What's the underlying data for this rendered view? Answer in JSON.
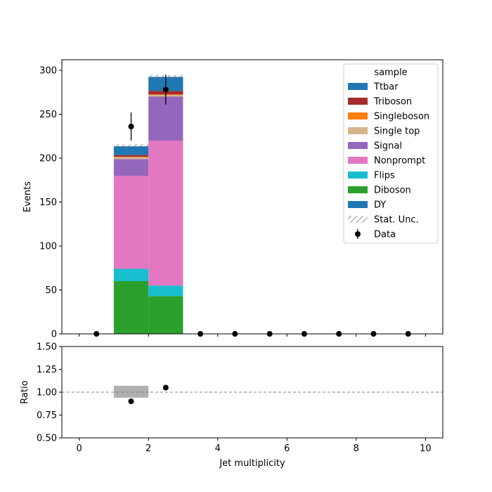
{
  "chart_data": [
    {
      "type": "bar",
      "stacked": true,
      "xlabel": "",
      "ylabel": "Events",
      "xlim": [
        -0.5,
        10.5
      ],
      "ylim": [
        0,
        312
      ],
      "y_ticks": [
        0,
        50,
        100,
        150,
        200,
        250,
        300
      ],
      "bins": [
        [
          1,
          2
        ],
        [
          2,
          3
        ]
      ],
      "series": [
        {
          "name": "DY",
          "color": "#1f77b4",
          "values": [
            0,
            0
          ]
        },
        {
          "name": "Diboson",
          "color": "#2ca02c",
          "values": [
            60,
            43
          ]
        },
        {
          "name": "Flips",
          "color": "#17becf",
          "values": [
            14,
            12
          ]
        },
        {
          "name": "Nonprompt",
          "color": "#e377c2",
          "values": [
            106,
            165
          ]
        },
        {
          "name": "Signal",
          "color": "#9467bd",
          "values": [
            19,
            50
          ]
        },
        {
          "name": "Single top",
          "color": "#d6b58b",
          "values": [
            2,
            2
          ]
        },
        {
          "name": "Singleboson",
          "color": "#ff7f0e",
          "values": [
            0.5,
            0.5
          ]
        },
        {
          "name": "Triboson",
          "color": "#a52a2a",
          "values": [
            2,
            4
          ]
        },
        {
          "name": "Ttbar",
          "color": "#1f77b4",
          "values": [
            10,
            16
          ]
        }
      ],
      "stat_unc": {
        "label": "Stat. Unc.",
        "lower": [
          212,
          289
        ],
        "upper": [
          216,
          295
        ]
      },
      "data": {
        "label": "Data",
        "x": [
          0.5,
          1.5,
          2.5,
          3.5,
          4.5,
          5.5,
          6.5,
          7.5,
          8.5,
          9.5
        ],
        "y": [
          0,
          236,
          278,
          0,
          0,
          0,
          0,
          0,
          0,
          0
        ],
        "yerr": [
          0,
          16,
          17,
          0,
          0,
          0,
          0,
          0,
          0,
          0
        ]
      },
      "legend": {
        "title": "sample",
        "placement": "top-right"
      }
    },
    {
      "type": "scatter",
      "xlabel": "Jet multiplicity",
      "ylabel": "Ratio",
      "xlim": [
        -0.5,
        10.5
      ],
      "ylim": [
        0.5,
        1.5
      ],
      "x_ticks": [
        0,
        2,
        4,
        6,
        8,
        10
      ],
      "y_ticks": [
        0.5,
        0.75,
        1.0,
        1.25,
        1.5
      ],
      "y_tick_labels": [
        "0.50",
        "0.75",
        "1.00",
        "1.25",
        "1.50"
      ],
      "reference_line": 1.0,
      "unc_band": {
        "bins": [
          [
            1,
            2
          ]
        ],
        "lower": [
          0.94
        ],
        "upper": [
          1.07
        ]
      },
      "points": {
        "x": [
          1.5,
          2.5
        ],
        "y": [
          0.9,
          1.05
        ]
      }
    }
  ]
}
